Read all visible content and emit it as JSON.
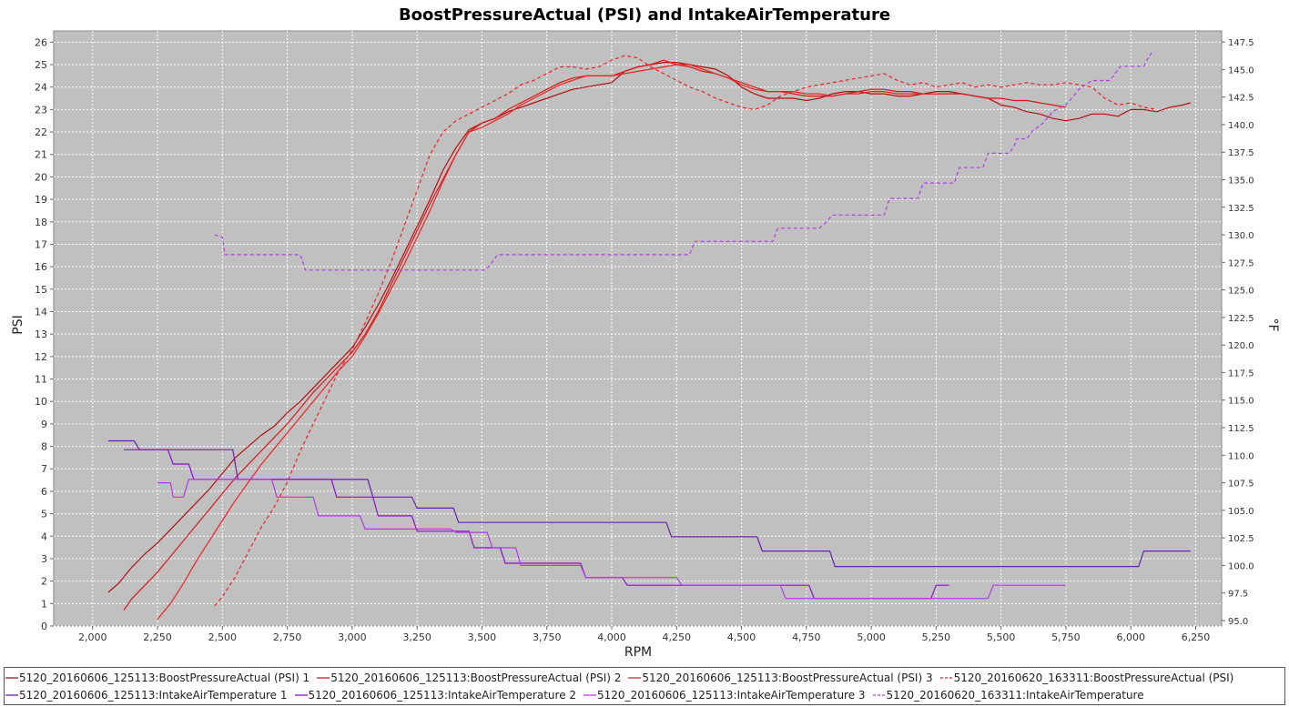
{
  "chart_data": {
    "type": "line",
    "title": "BoostPressureActual (PSI) and IntakeAirTemperature",
    "xlabel": "RPM",
    "ylabel": "PSI",
    "y2label": "°F",
    "xlim": [
      1850,
      6350
    ],
    "ylim": [
      0,
      26.5
    ],
    "y2lim": [
      94.5,
      148.5
    ],
    "x_ticks": [
      2000,
      2250,
      2500,
      2750,
      3000,
      3250,
      3500,
      3750,
      4000,
      4250,
      4500,
      4750,
      5000,
      5250,
      5500,
      5750,
      6000,
      6250
    ],
    "x_tick_labels": [
      "2,000",
      "2,250",
      "2,500",
      "2,750",
      "3,000",
      "3,250",
      "3,500",
      "3,750",
      "4,000",
      "4,250",
      "4,500",
      "4,750",
      "5,000",
      "5,250",
      "5,500",
      "5,750",
      "6,000",
      "6,250"
    ],
    "y_ticks": [
      0,
      1,
      2,
      3,
      4,
      5,
      6,
      7,
      8,
      9,
      10,
      11,
      12,
      13,
      14,
      15,
      16,
      17,
      18,
      19,
      20,
      21,
      22,
      23,
      24,
      25,
      26
    ],
    "y2_ticks": [
      95.0,
      97.5,
      100.0,
      102.5,
      105.0,
      107.5,
      110.0,
      112.5,
      115.0,
      117.5,
      120.0,
      122.5,
      125.0,
      127.5,
      130.0,
      132.5,
      135.0,
      137.5,
      140.0,
      142.5,
      145.0,
      147.5
    ],
    "y2_tick_labels": [
      "95.0",
      "97.5",
      "100.0",
      "102.5",
      "105.0",
      "107.5",
      "110.0",
      "112.5",
      "115.0",
      "117.5",
      "120.0",
      "122.5",
      "125.0",
      "127.5",
      "130.0",
      "132.5",
      "135.0",
      "137.5",
      "140.0",
      "142.5",
      "145.0",
      "147.5"
    ],
    "grid": true,
    "legend_position": "bottom",
    "series": [
      {
        "name": "5120_20160606_125113:BoostPressureActual (PSI) 1",
        "axis": "left",
        "color": "#b01010",
        "dash": false,
        "x": [
          2060,
          2100,
          2150,
          2200,
          2250,
          2300,
          2350,
          2400,
          2450,
          2500,
          2550,
          2600,
          2650,
          2700,
          2750,
          2800,
          2850,
          2900,
          2950,
          3000,
          3050,
          3100,
          3150,
          3200,
          3250,
          3300,
          3350,
          3400,
          3450,
          3500,
          3550,
          3600,
          3650,
          3700,
          3750,
          3800,
          3850,
          3900,
          3950,
          4000,
          4050,
          4100,
          4150,
          4200,
          4250,
          4300,
          4350,
          4400,
          4450,
          4500,
          4550,
          4600,
          4650,
          4700,
          4750,
          4800,
          4850,
          4900,
          4950,
          5000,
          5050,
          5100,
          5150,
          5200,
          5250,
          5300,
          5350,
          5400,
          5450,
          5500,
          5550,
          5600,
          5650,
          5700,
          5750,
          5800,
          5850,
          5900,
          5950,
          6000,
          6050,
          6100,
          6150,
          6200,
          6230
        ],
        "y": [
          1.5,
          1.9,
          2.6,
          3.2,
          3.7,
          4.3,
          4.9,
          5.5,
          6.1,
          6.8,
          7.5,
          8.0,
          8.5,
          8.9,
          9.5,
          10.0,
          10.6,
          11.2,
          11.8,
          12.4,
          13.3,
          14.3,
          15.4,
          16.6,
          17.8,
          19.0,
          20.3,
          21.3,
          22.1,
          22.4,
          22.6,
          22.9,
          23.1,
          23.3,
          23.5,
          23.7,
          23.9,
          24.0,
          24.1,
          24.2,
          24.7,
          24.9,
          25.0,
          25.1,
          25.1,
          25.0,
          24.9,
          24.8,
          24.5,
          24.0,
          23.7,
          23.5,
          23.5,
          23.5,
          23.4,
          23.5,
          23.7,
          23.8,
          23.8,
          23.7,
          23.7,
          23.6,
          23.6,
          23.7,
          23.8,
          23.8,
          23.7,
          23.6,
          23.5,
          23.2,
          23.1,
          22.9,
          22.8,
          22.6,
          22.5,
          22.6,
          22.8,
          22.8,
          22.7,
          23.0,
          23.0,
          22.9,
          23.1,
          23.2,
          23.3
        ]
      },
      {
        "name": "5120_20160606_125113:BoostPressureActual (PSI) 2",
        "axis": "left",
        "color": "#d81818",
        "dash": false,
        "x": [
          2120,
          2150,
          2200,
          2250,
          2300,
          2350,
          2400,
          2450,
          2500,
          2550,
          2600,
          2650,
          2700,
          2750,
          2800,
          2850,
          2900,
          2950,
          3000,
          3050,
          3100,
          3150,
          3200,
          3250,
          3300,
          3350,
          3400,
          3450,
          3500,
          3550,
          3600,
          3650,
          3700,
          3750,
          3800,
          3850,
          3900,
          3950,
          4000,
          4050,
          4100,
          4150,
          4200,
          4250,
          4300,
          4350,
          4400,
          4450,
          4500,
          4550,
          4600,
          4650,
          4700,
          4750,
          4800,
          4850,
          4900,
          4950,
          5000,
          5050,
          5100,
          5150,
          5200,
          5250,
          5300,
          5350,
          5400,
          5450,
          5500,
          5550,
          5600,
          5650,
          5700,
          5750
        ],
        "y": [
          0.7,
          1.2,
          1.8,
          2.4,
          3.1,
          3.8,
          4.5,
          5.2,
          5.9,
          6.6,
          7.2,
          7.8,
          8.4,
          9.0,
          9.7,
          10.4,
          11.0,
          11.6,
          12.2,
          13.0,
          14.0,
          15.2,
          16.4,
          17.6,
          18.8,
          19.9,
          21.0,
          22.0,
          22.4,
          22.6,
          23.0,
          23.3,
          23.6,
          23.9,
          24.2,
          24.4,
          24.5,
          24.5,
          24.5,
          24.7,
          24.9,
          25.0,
          25.2,
          25.0,
          24.9,
          24.7,
          24.6,
          24.4,
          24.2,
          24.0,
          23.8,
          23.8,
          23.7,
          23.6,
          23.6,
          23.6,
          23.7,
          23.8,
          23.9,
          23.9,
          23.8,
          23.8,
          23.7,
          23.7,
          23.7,
          23.7,
          23.6,
          23.5,
          23.5,
          23.4,
          23.4,
          23.3,
          23.2,
          23.1
        ]
      },
      {
        "name": "5120_20160606_125113:BoostPressureActual (PSI) 3",
        "axis": "left",
        "color": "#ee2222",
        "dash": false,
        "x": [
          2250,
          2300,
          2350,
          2400,
          2450,
          2500,
          2550,
          2600,
          2650,
          2700,
          2750,
          2800,
          2850,
          2900,
          2950,
          3000,
          3050,
          3100,
          3150,
          3200,
          3250,
          3300,
          3350,
          3400,
          3450,
          3500,
          3550,
          3600,
          3650,
          3700,
          3750,
          3800,
          3850,
          3900,
          3950,
          4000,
          4050,
          4100,
          4150,
          4200,
          4250,
          4300,
          4350,
          4400,
          4450,
          4500,
          4550,
          4600,
          4650,
          4700,
          4750,
          4800,
          4850,
          4900,
          4950,
          5000,
          5050,
          5100,
          5150,
          5200,
          5250,
          5300
        ],
        "y": [
          0.3,
          1.0,
          1.9,
          2.9,
          3.8,
          4.7,
          5.6,
          6.4,
          7.2,
          7.9,
          8.6,
          9.3,
          10.0,
          10.7,
          11.4,
          12.0,
          12.9,
          13.9,
          15.0,
          16.1,
          17.3,
          18.5,
          19.8,
          21.0,
          22.0,
          22.2,
          22.5,
          22.8,
          23.2,
          23.5,
          23.8,
          24.1,
          24.3,
          24.5,
          24.5,
          24.5,
          24.6,
          24.7,
          24.8,
          24.9,
          25.0,
          25.0,
          24.8,
          24.6,
          24.4,
          24.1,
          23.9,
          23.8,
          23.8,
          23.8,
          23.7,
          23.7,
          23.6,
          23.7,
          23.7,
          23.8,
          23.8,
          23.7,
          23.7,
          23.7,
          23.7,
          23.7
        ]
      },
      {
        "name": "5120_20160620_163311:BoostPressureActual (PSI)",
        "axis": "left",
        "color": "#ee2222",
        "dash": true,
        "x": [
          2470,
          2500,
          2550,
          2600,
          2650,
          2700,
          2750,
          2800,
          2850,
          2900,
          2950,
          3000,
          3050,
          3100,
          3150,
          3200,
          3250,
          3300,
          3350,
          3400,
          3450,
          3500,
          3550,
          3600,
          3650,
          3700,
          3750,
          3800,
          3850,
          3900,
          3950,
          4000,
          4050,
          4100,
          4150,
          4200,
          4250,
          4300,
          4350,
          4400,
          4450,
          4500,
          4550,
          4600,
          4650,
          4700,
          4750,
          4800,
          4850,
          4900,
          4950,
          5000,
          5050,
          5100,
          5150,
          5200,
          5250,
          5300,
          5350,
          5400,
          5450,
          5500,
          5550,
          5600,
          5650,
          5700,
          5750,
          5800,
          5850,
          5900,
          5950,
          6000,
          6050,
          6100
        ],
        "y": [
          0.9,
          1.3,
          2.2,
          3.3,
          4.4,
          5.3,
          6.4,
          7.8,
          9.0,
          10.2,
          11.4,
          12.3,
          13.5,
          14.8,
          16.2,
          17.8,
          19.4,
          21.0,
          22.0,
          22.5,
          22.8,
          23.1,
          23.4,
          23.7,
          24.1,
          24.3,
          24.6,
          24.9,
          24.9,
          24.8,
          24.9,
          25.2,
          25.4,
          25.3,
          24.9,
          24.6,
          24.3,
          24.0,
          23.8,
          23.5,
          23.3,
          23.1,
          23.0,
          23.2,
          23.6,
          23.8,
          24.0,
          24.1,
          24.2,
          24.3,
          24.4,
          24.5,
          24.6,
          24.3,
          24.1,
          24.2,
          24.0,
          24.1,
          24.2,
          24.0,
          24.1,
          24.0,
          24.1,
          24.2,
          24.1,
          24.1,
          24.2,
          24.1,
          24.0,
          23.5,
          23.2,
          23.3,
          23.1,
          23.0
        ]
      },
      {
        "name": "5120_20160606_125113:IntakeAirTemperature 1",
        "axis": "right",
        "color": "#6a1fa8",
        "dash": false,
        "x": [
          2060,
          2160,
          2180,
          2540,
          2560,
          3060,
          3080,
          3230,
          3250,
          3390,
          3410,
          4210,
          4230,
          4560,
          4580,
          4780,
          4800,
          4840,
          4860,
          5320,
          5340,
          6030,
          6050,
          6230
        ],
        "y": [
          111.3,
          111.3,
          110.5,
          110.5,
          107.8,
          107.8,
          106.2,
          106.2,
          105.2,
          105.2,
          103.9,
          103.9,
          102.6,
          102.6,
          101.3,
          101.3,
          101.3,
          101.3,
          99.9,
          99.9,
          99.9,
          99.9,
          101.3,
          101.3
        ]
      },
      {
        "name": "5120_20160606_125113:IntakeAirTemperature 2",
        "axis": "right",
        "color": "#8a10cc",
        "dash": false,
        "x": [
          2120,
          2290,
          2310,
          2370,
          2390,
          2920,
          2940,
          3080,
          3100,
          3230,
          3250,
          3450,
          3470,
          3570,
          3590,
          3880,
          3900,
          4040,
          4060,
          4250,
          4270,
          4760,
          4780,
          5050,
          5070,
          5200,
          5220,
          5230,
          5250,
          5300
        ],
        "y": [
          110.5,
          110.5,
          109.2,
          109.2,
          107.8,
          107.8,
          106.2,
          106.2,
          104.5,
          104.5,
          103.1,
          103.1,
          101.6,
          101.6,
          100.2,
          100.2,
          98.9,
          98.9,
          98.2,
          98.2,
          98.2,
          98.2,
          97.0,
          97.0,
          97.0,
          97.0,
          97.0,
          97.0,
          98.2,
          98.2
        ]
      },
      {
        "name": "5120_20160606_125113:IntakeAirTemperature 3",
        "axis": "right",
        "color": "#b23ae8",
        "dash": false,
        "x": [
          2250,
          2300,
          2310,
          2350,
          2370,
          2690,
          2710,
          2850,
          2870,
          3030,
          3050,
          3380,
          3400,
          3520,
          3540,
          3630,
          3650,
          3880,
          3900,
          4000,
          4020,
          4080,
          4100,
          4250,
          4270,
          4650,
          4670,
          4730,
          4750,
          5450,
          5470,
          5750
        ],
        "y": [
          107.5,
          107.5,
          106.2,
          106.2,
          107.8,
          107.8,
          106.2,
          106.2,
          104.5,
          104.5,
          103.3,
          103.3,
          103.0,
          103.0,
          101.6,
          101.6,
          100.0,
          100.0,
          98.9,
          98.9,
          98.9,
          98.9,
          98.9,
          98.9,
          98.2,
          98.2,
          97.0,
          97.0,
          97.0,
          97.0,
          98.2,
          98.2
        ]
      },
      {
        "name": "5120_20160620_163311:IntakeAirTemperature",
        "axis": "right",
        "color": "#b23ae8",
        "dash": true,
        "x": [
          2470,
          2500,
          2510,
          2800,
          2820,
          3510,
          3530,
          3560,
          3580,
          4300,
          4320,
          4620,
          4640,
          4800,
          4820,
          4850,
          4870,
          5050,
          5070,
          5180,
          5200,
          5320,
          5340,
          5430,
          5450,
          5530,
          5550,
          5560,
          5600,
          5620,
          5660,
          5700,
          5750,
          5780,
          5800,
          5850,
          5890,
          5920,
          5960,
          6050,
          6060,
          6080
        ],
        "y": [
          130.0,
          129.8,
          128.2,
          128.2,
          126.8,
          126.8,
          127.2,
          128.2,
          128.2,
          128.2,
          129.4,
          129.4,
          130.6,
          130.6,
          131.0,
          131.8,
          131.8,
          131.8,
          133.3,
          133.3,
          134.7,
          134.7,
          136.1,
          136.1,
          137.4,
          137.4,
          138.0,
          138.7,
          138.7,
          139.4,
          140.1,
          141.2,
          141.8,
          142.6,
          143.2,
          144.0,
          144.0,
          144.0,
          145.3,
          145.3,
          145.8,
          146.5
        ]
      }
    ]
  }
}
